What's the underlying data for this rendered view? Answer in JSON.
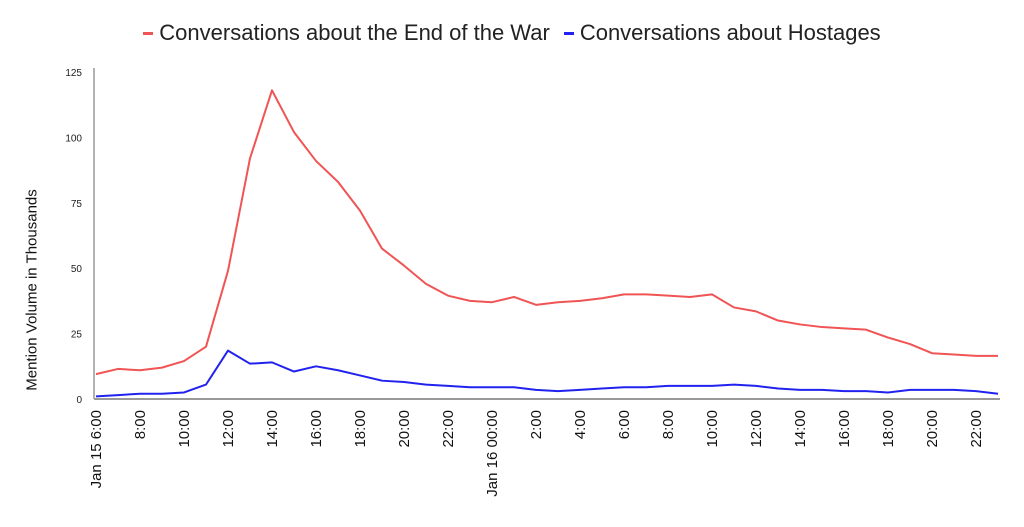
{
  "chart_data": {
    "type": "line",
    "title": "",
    "xlabel": "",
    "ylabel": "Mention Volume in Thousands",
    "ylim": [
      0,
      125
    ],
    "yticks": [
      0,
      25,
      50,
      75,
      100,
      125
    ],
    "legend_position": "top-center",
    "x_tick_labels": [
      "Jan 15 6:00",
      "8:00",
      "10:00",
      "12:00",
      "14:00",
      "16:00",
      "18:00",
      "20:00",
      "22:00",
      "Jan 16 00:00",
      "2:00",
      "4:00",
      "6:00",
      "8:00",
      "10:00",
      "12:00",
      "14:00",
      "16:00",
      "18:00",
      "20:00",
      "22:00"
    ],
    "x_hours": [
      "Jan 15 6:00",
      "7:00",
      "8:00",
      "9:00",
      "10:00",
      "11:00",
      "12:00",
      "13:00",
      "14:00",
      "15:00",
      "16:00",
      "17:00",
      "18:00",
      "19:00",
      "20:00",
      "21:00",
      "22:00",
      "23:00",
      "Jan 16 00:00",
      "1:00",
      "2:00",
      "3:00",
      "4:00",
      "5:00",
      "6:00",
      "7:00",
      "8:00",
      "9:00",
      "10:00",
      "11:00",
      "12:00",
      "13:00",
      "14:00",
      "15:00",
      "16:00",
      "17:00",
      "18:00",
      "19:00",
      "20:00",
      "21:00",
      "22:00",
      "23:00"
    ],
    "series": [
      {
        "name": "Conversations about the End of the War",
        "color": "#f05454",
        "values": [
          9.5,
          11.5,
          11,
          12,
          14.5,
          20,
          49,
          92,
          118,
          102,
          91,
          83,
          72,
          57.5,
          51,
          44,
          39.5,
          37.5,
          37,
          39,
          36,
          37,
          37.5,
          38.5,
          40,
          40,
          39.5,
          39,
          40,
          35,
          33.5,
          30,
          28.5,
          27.5,
          27,
          26.5,
          23.5,
          21,
          17.5,
          17,
          16.5,
          16.5
        ]
      },
      {
        "name": "Conversations about Hostages",
        "color": "#2222f0",
        "values": [
          1,
          1.5,
          2,
          2,
          2.5,
          5.5,
          18.5,
          13.5,
          14,
          10.5,
          12.5,
          11,
          9,
          7,
          6.5,
          5.5,
          5,
          4.5,
          4.5,
          4.5,
          3.5,
          3,
          3.5,
          4,
          4.5,
          4.5,
          5,
          5,
          5,
          5.5,
          5,
          4,
          3.5,
          3.5,
          3,
          3,
          2.5,
          3.5,
          3.5,
          3.5,
          3,
          2
        ]
      }
    ]
  }
}
